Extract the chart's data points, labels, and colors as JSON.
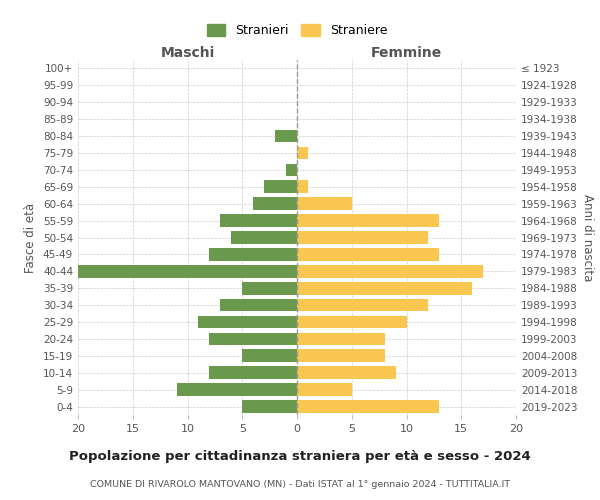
{
  "age_groups": [
    "0-4",
    "5-9",
    "10-14",
    "15-19",
    "20-24",
    "25-29",
    "30-34",
    "35-39",
    "40-44",
    "45-49",
    "50-54",
    "55-59",
    "60-64",
    "65-69",
    "70-74",
    "75-79",
    "80-84",
    "85-89",
    "90-94",
    "95-99",
    "100+"
  ],
  "birth_years": [
    "2019-2023",
    "2014-2018",
    "2009-2013",
    "2004-2008",
    "1999-2003",
    "1994-1998",
    "1989-1993",
    "1984-1988",
    "1979-1983",
    "1974-1978",
    "1969-1973",
    "1964-1968",
    "1959-1963",
    "1954-1958",
    "1949-1953",
    "1944-1948",
    "1939-1943",
    "1934-1938",
    "1929-1933",
    "1924-1928",
    "≤ 1923"
  ],
  "maschi": [
    5,
    11,
    8,
    5,
    8,
    9,
    7,
    5,
    20,
    8,
    6,
    7,
    4,
    3,
    1,
    0,
    2,
    0,
    0,
    0,
    0
  ],
  "femmine": [
    13,
    5,
    9,
    8,
    8,
    10,
    12,
    16,
    17,
    13,
    12,
    13,
    5,
    1,
    0,
    1,
    0,
    0,
    0,
    0,
    0
  ],
  "color_maschi": "#6a994e",
  "color_femmine": "#f9c74f",
  "title": "Popolazione per cittadinanza straniera per età e sesso - 2024",
  "subtitle": "COMUNE DI RIVAROLO MANTOVANO (MN) - Dati ISTAT al 1° gennaio 2024 - TUTTITALIA.IT",
  "legend_maschi": "Stranieri",
  "legend_femmine": "Straniere",
  "xlabel_left": "Maschi",
  "xlabel_right": "Femmine",
  "ylabel_left": "Fasce di età",
  "ylabel_right": "Anni di nascita",
  "xlim": 20,
  "bg_color": "#ffffff",
  "grid_color": "#cccccc"
}
